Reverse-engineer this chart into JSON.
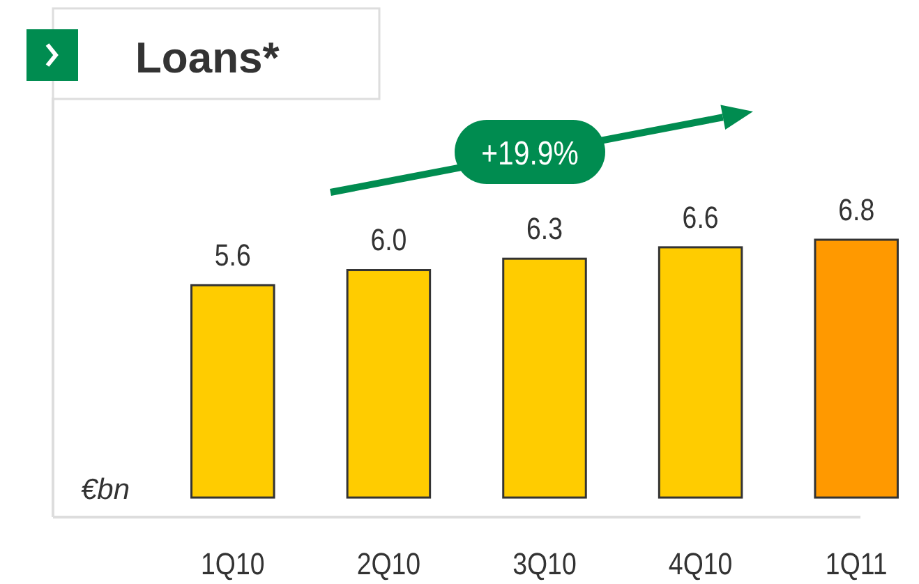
{
  "chart_data": {
    "type": "bar",
    "title": "Loans*",
    "ylabel": "€bn",
    "categories": [
      "1Q10",
      "2Q10",
      "3Q10",
      "4Q10",
      "1Q11"
    ],
    "values": [
      5.6,
      6.0,
      6.3,
      6.6,
      6.8
    ],
    "colors": [
      "#ffcc00",
      "#ffcc00",
      "#ffcc00",
      "#ffcc00",
      "#ff9900"
    ],
    "value_labels": [
      "5.6",
      "6.0",
      "6.3",
      "6.6",
      "6.8"
    ],
    "tick_labels": "x",
    "annotations": [
      "+19.9%"
    ]
  }
}
